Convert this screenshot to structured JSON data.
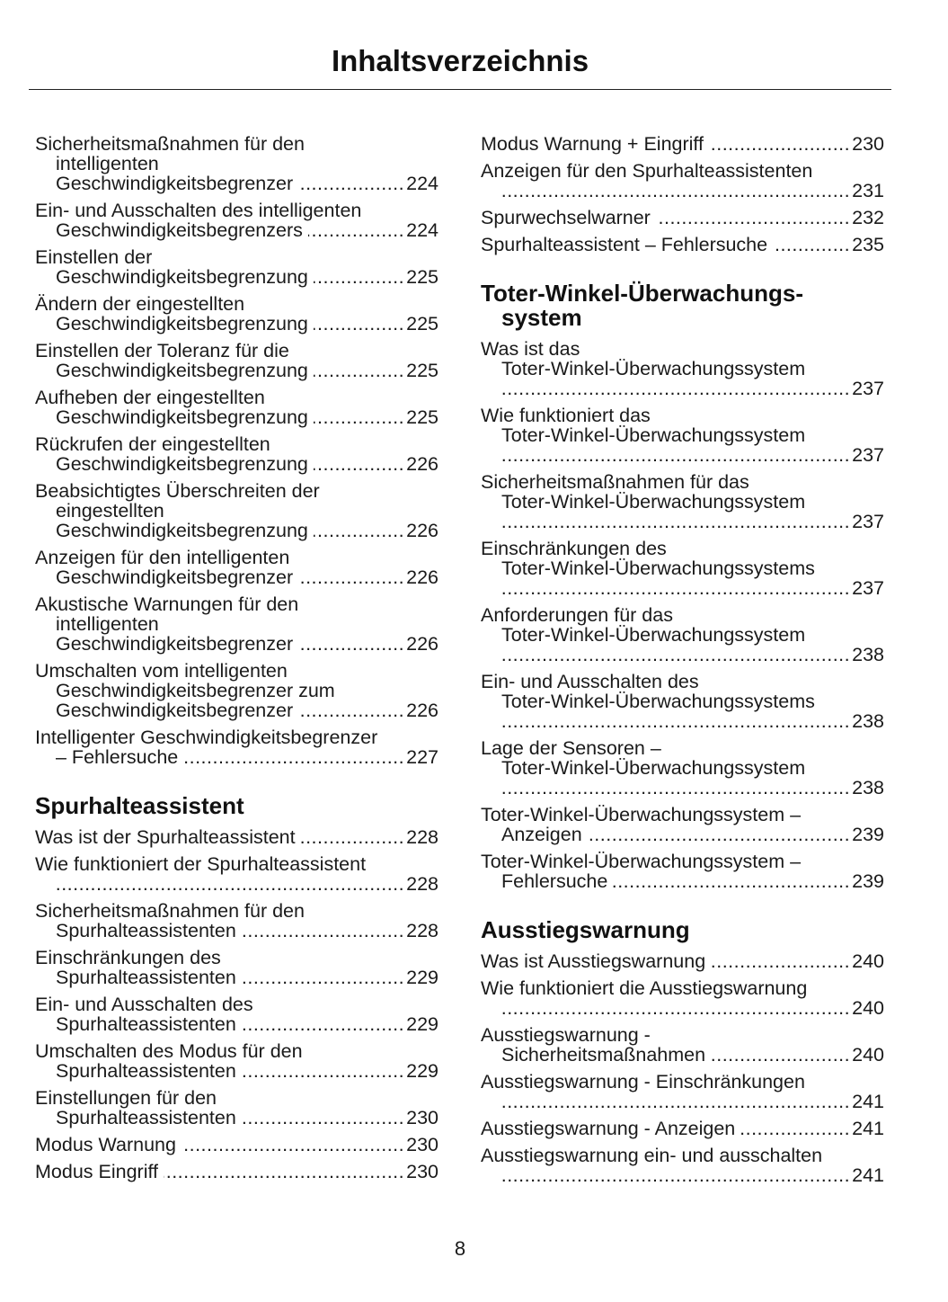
{
  "title": "Inhaltsverzeichnis",
  "page_number": "8",
  "columns": [
    [
      {
        "type": "entry",
        "lines": [
          "Sicherheitsmaßnahmen für den",
          "intelligenten",
          "Geschwindigkeitsbegrenzer"
        ],
        "page": "224"
      },
      {
        "type": "entry",
        "lines": [
          "Ein- und Ausschalten des intelligenten",
          "Geschwindigkeitsbegrenzers"
        ],
        "page": "224"
      },
      {
        "type": "entry",
        "lines": [
          "Einstellen der",
          "Geschwindigkeitsbegrenzung"
        ],
        "page": "225"
      },
      {
        "type": "entry",
        "lines": [
          "Ändern der eingestellten",
          "Geschwindigkeitsbegrenzung"
        ],
        "page": "225"
      },
      {
        "type": "entry",
        "lines": [
          "Einstellen der Toleranz für die",
          "Geschwindigkeitsbegrenzung"
        ],
        "page": "225"
      },
      {
        "type": "entry",
        "lines": [
          "Aufheben der eingestellten",
          "Geschwindigkeitsbegrenzung"
        ],
        "page": "225"
      },
      {
        "type": "entry",
        "lines": [
          "Rückrufen der eingestellten",
          "Geschwindigkeitsbegrenzung"
        ],
        "page": "226"
      },
      {
        "type": "entry",
        "lines": [
          "Beabsichtigtes Überschreiten der",
          "eingestellten",
          "Geschwindigkeitsbegrenzung"
        ],
        "page": "226"
      },
      {
        "type": "entry",
        "lines": [
          "Anzeigen für den intelligenten",
          "Geschwindigkeitsbegrenzer"
        ],
        "page": "226"
      },
      {
        "type": "entry",
        "lines": [
          "Akustische Warnungen für den",
          "intelligenten",
          "Geschwindigkeitsbegrenzer"
        ],
        "page": "226"
      },
      {
        "type": "entry",
        "lines": [
          "Umschalten vom intelligenten",
          "Geschwindigkeitsbegrenzer zum",
          "Geschwindigkeitsbegrenzer"
        ],
        "page": "226"
      },
      {
        "type": "entry",
        "lines": [
          "Intelligenter Geschwindigkeitsbegrenzer",
          "– Fehlersuche"
        ],
        "page": "227"
      },
      {
        "type": "heading",
        "lines": [
          "Spurhalteassistent"
        ]
      },
      {
        "type": "entry",
        "lines": [
          "Was ist der Spurhalteassistent"
        ],
        "page": "228"
      },
      {
        "type": "entry",
        "lines": [
          "Wie funktioniert der Spurhalteassistent",
          ""
        ],
        "page": "228"
      },
      {
        "type": "entry",
        "lines": [
          "Sicherheitsmaßnahmen für den",
          "Spurhalteassistenten"
        ],
        "page": "228"
      },
      {
        "type": "entry",
        "lines": [
          "Einschränkungen des",
          "Spurhalteassistenten"
        ],
        "page": "229"
      },
      {
        "type": "entry",
        "lines": [
          "Ein- und Ausschalten des",
          "Spurhalteassistenten"
        ],
        "page": "229"
      },
      {
        "type": "entry",
        "lines": [
          "Umschalten des Modus für den",
          "Spurhalteassistenten"
        ],
        "page": "229"
      },
      {
        "type": "entry",
        "lines": [
          "Einstellungen für den",
          "Spurhalteassistenten"
        ],
        "page": "230"
      },
      {
        "type": "entry",
        "lines": [
          "Modus Warnung"
        ],
        "page": "230"
      },
      {
        "type": "entry",
        "lines": [
          "Modus Eingriff"
        ],
        "page": "230"
      }
    ],
    [
      {
        "type": "entry",
        "lines": [
          "Modus Warnung + Eingriff"
        ],
        "page": "230"
      },
      {
        "type": "entry",
        "lines": [
          "Anzeigen für den Spurhalteassistenten",
          ""
        ],
        "page": "231"
      },
      {
        "type": "entry",
        "lines": [
          "Spurwechselwarner"
        ],
        "page": "232"
      },
      {
        "type": "entry",
        "lines": [
          "Spurhalteassistent – Fehlersuche"
        ],
        "page": "235"
      },
      {
        "type": "heading",
        "lines": [
          "Toter-Winkel-Überwachungs-",
          "system"
        ]
      },
      {
        "type": "entry",
        "lines": [
          "Was ist das",
          "Toter-Winkel-Überwachungssystem",
          ""
        ],
        "page": "237"
      },
      {
        "type": "entry",
        "lines": [
          "Wie funktioniert das",
          "Toter-Winkel-Überwachungssystem",
          ""
        ],
        "page": "237"
      },
      {
        "type": "entry",
        "lines": [
          "Sicherheitsmaßnahmen für das",
          "Toter-Winkel-Überwachungssystem",
          ""
        ],
        "page": "237"
      },
      {
        "type": "entry",
        "lines": [
          "Einschränkungen des",
          "Toter-Winkel-Überwachungssystems",
          ""
        ],
        "page": "237"
      },
      {
        "type": "entry",
        "lines": [
          "Anforderungen für das",
          "Toter-Winkel-Überwachungssystem",
          ""
        ],
        "page": "238"
      },
      {
        "type": "entry",
        "lines": [
          "Ein- und Ausschalten des",
          "Toter-Winkel-Überwachungssystems",
          ""
        ],
        "page": "238"
      },
      {
        "type": "entry",
        "lines": [
          "Lage der Sensoren –",
          "Toter-Winkel-Überwachungssystem",
          ""
        ],
        "page": "238"
      },
      {
        "type": "entry",
        "lines": [
          "Toter-Winkel-Überwachungssystem –",
          "Anzeigen"
        ],
        "page": "239"
      },
      {
        "type": "entry",
        "lines": [
          "Toter-Winkel-Überwachungssystem –",
          "Fehlersuche"
        ],
        "page": "239"
      },
      {
        "type": "heading",
        "lines": [
          "Ausstiegswarnung"
        ]
      },
      {
        "type": "entry",
        "lines": [
          "Was ist Ausstiegswarnung"
        ],
        "page": "240"
      },
      {
        "type": "entry",
        "lines": [
          "Wie funktioniert die Ausstiegswarnung",
          ""
        ],
        "page": "240"
      },
      {
        "type": "entry",
        "lines": [
          "Ausstiegswarnung -",
          "Sicherheitsmaßnahmen"
        ],
        "page": "240"
      },
      {
        "type": "entry",
        "lines": [
          "Ausstiegswarnung - Einschränkungen",
          ""
        ],
        "page": "241"
      },
      {
        "type": "entry",
        "lines": [
          "Ausstiegswarnung - Anzeigen"
        ],
        "page": "241"
      },
      {
        "type": "entry",
        "lines": [
          "Ausstiegswarnung ein- und ausschalten",
          ""
        ],
        "page": "241"
      }
    ]
  ]
}
